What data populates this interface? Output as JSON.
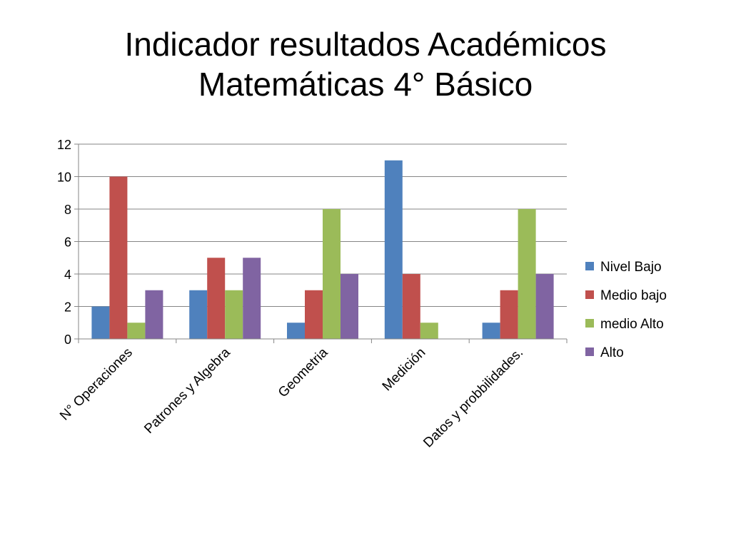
{
  "slide": {
    "title_line1": "Indicador resultados Académicos",
    "title_line2": "Matemáticas 4° Básico"
  },
  "chart_data": {
    "type": "bar",
    "title": "",
    "xlabel": "",
    "ylabel": "",
    "categories": [
      "N° Operaciones",
      "Patrones y Algebra",
      "Geometria",
      "Medición",
      "Datos y probbilidades."
    ],
    "series": [
      {
        "name": "Nivel Bajo",
        "color": "#4F81BD",
        "values": [
          2,
          3,
          1,
          11,
          1
        ]
      },
      {
        "name": "Medio bajo",
        "color": "#C0504D",
        "values": [
          10,
          5,
          3,
          4,
          3
        ]
      },
      {
        "name": "medio Alto",
        "color": "#9BBB59",
        "values": [
          1,
          3,
          8,
          1,
          8
        ]
      },
      {
        "name": "Alto",
        "color": "#8064A2",
        "values": [
          3,
          5,
          4,
          null,
          4
        ]
      }
    ],
    "ylim": [
      0,
      12
    ],
    "yticks": [
      0,
      2,
      4,
      6,
      8,
      10,
      12
    ],
    "grid": true,
    "legend": "right"
  }
}
